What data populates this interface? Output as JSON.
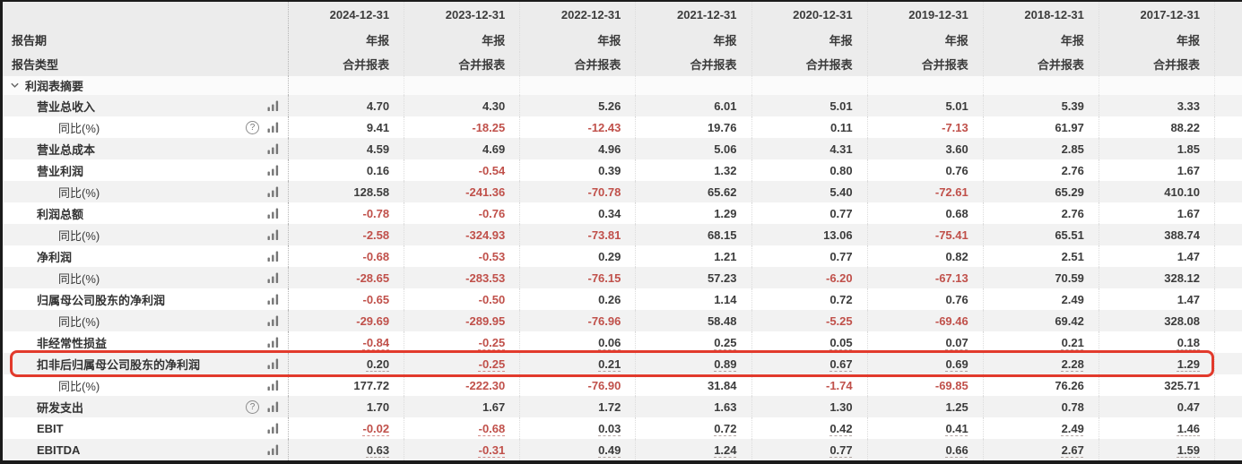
{
  "header": {
    "columns": [
      "2024-12-31",
      "2023-12-31",
      "2022-12-31",
      "2021-12-31",
      "2020-12-31",
      "2019-12-31",
      "2018-12-31",
      "2017-12-31"
    ],
    "report_period_label": "报告期",
    "report_period_value": "年报",
    "report_type_label": "报告类型",
    "report_type_value": "合并报表"
  },
  "section": {
    "label": "利润表摘要"
  },
  "rows": [
    {
      "label": "营业总收入",
      "indent": false,
      "help": false,
      "underline": false,
      "highlight": false,
      "values": [
        "4.70",
        "4.30",
        "5.26",
        "6.01",
        "5.01",
        "5.01",
        "5.39",
        "3.33"
      ]
    },
    {
      "label": "同比(%)",
      "indent": true,
      "help": true,
      "underline": false,
      "highlight": false,
      "values": [
        "9.41",
        "-18.25",
        "-12.43",
        "19.76",
        "0.11",
        "-7.13",
        "61.97",
        "88.22"
      ]
    },
    {
      "label": "营业总成本",
      "indent": false,
      "help": false,
      "underline": false,
      "highlight": false,
      "values": [
        "4.59",
        "4.69",
        "4.96",
        "5.06",
        "4.31",
        "3.60",
        "2.85",
        "1.85"
      ]
    },
    {
      "label": "营业利润",
      "indent": false,
      "help": false,
      "underline": false,
      "highlight": false,
      "values": [
        "0.16",
        "-0.54",
        "0.39",
        "1.32",
        "0.80",
        "0.76",
        "2.76",
        "1.67"
      ]
    },
    {
      "label": "同比(%)",
      "indent": true,
      "help": false,
      "underline": false,
      "highlight": false,
      "values": [
        "128.58",
        "-241.36",
        "-70.78",
        "65.62",
        "5.40",
        "-72.61",
        "65.29",
        "410.10"
      ]
    },
    {
      "label": "利润总额",
      "indent": false,
      "help": false,
      "underline": false,
      "highlight": false,
      "values": [
        "-0.78",
        "-0.76",
        "0.34",
        "1.29",
        "0.77",
        "0.68",
        "2.76",
        "1.67"
      ]
    },
    {
      "label": "同比(%)",
      "indent": true,
      "help": false,
      "underline": false,
      "highlight": false,
      "values": [
        "-2.58",
        "-324.93",
        "-73.81",
        "68.15",
        "13.06",
        "-75.41",
        "65.51",
        "388.74"
      ]
    },
    {
      "label": "净利润",
      "indent": false,
      "help": false,
      "underline": false,
      "highlight": false,
      "values": [
        "-0.68",
        "-0.53",
        "0.29",
        "1.21",
        "0.77",
        "0.82",
        "2.51",
        "1.47"
      ]
    },
    {
      "label": "同比(%)",
      "indent": true,
      "help": false,
      "underline": false,
      "highlight": false,
      "values": [
        "-28.65",
        "-283.53",
        "-76.15",
        "57.23",
        "-6.20",
        "-67.13",
        "70.59",
        "328.12"
      ]
    },
    {
      "label": "归属母公司股东的净利润",
      "indent": false,
      "help": false,
      "underline": false,
      "highlight": false,
      "values": [
        "-0.65",
        "-0.50",
        "0.26",
        "1.14",
        "0.72",
        "0.76",
        "2.49",
        "1.47"
      ]
    },
    {
      "label": "同比(%)",
      "indent": true,
      "help": false,
      "underline": false,
      "highlight": false,
      "values": [
        "-29.69",
        "-289.95",
        "-76.96",
        "58.48",
        "-5.25",
        "-69.46",
        "69.42",
        "328.08"
      ]
    },
    {
      "label": "非经常性损益",
      "indent": false,
      "help": false,
      "underline": true,
      "highlight": false,
      "values": [
        "-0.84",
        "-0.25",
        "0.06",
        "0.25",
        "0.05",
        "0.07",
        "0.21",
        "0.18"
      ]
    },
    {
      "label": "扣非后归属母公司股东的净利润",
      "indent": false,
      "help": false,
      "underline": true,
      "highlight": true,
      "values": [
        "0.20",
        "-0.25",
        "0.21",
        "0.89",
        "0.67",
        "0.69",
        "2.28",
        "1.29"
      ]
    },
    {
      "label": "同比(%)",
      "indent": true,
      "help": false,
      "underline": false,
      "highlight": false,
      "values": [
        "177.72",
        "-222.30",
        "-76.90",
        "31.84",
        "-1.74",
        "-69.85",
        "76.26",
        "325.71"
      ]
    },
    {
      "label": "研发支出",
      "indent": false,
      "help": true,
      "underline": false,
      "highlight": false,
      "values": [
        "1.70",
        "1.67",
        "1.72",
        "1.63",
        "1.30",
        "1.25",
        "0.78",
        "0.47"
      ]
    },
    {
      "label": "EBIT",
      "indent": false,
      "help": false,
      "underline": true,
      "highlight": false,
      "values": [
        "-0.02",
        "-0.68",
        "0.03",
        "0.72",
        "0.42",
        "0.41",
        "2.49",
        "1.46"
      ]
    },
    {
      "label": "EBITDA",
      "indent": false,
      "help": false,
      "underline": true,
      "highlight": false,
      "values": [
        "0.63",
        "-0.31",
        "0.49",
        "1.24",
        "0.77",
        "0.66",
        "2.67",
        "1.59"
      ]
    }
  ],
  "colors": {
    "negative": "#c0504a",
    "highlight_border": "#e23a2c",
    "header_background": "#ececec",
    "row_alt_background": "#f2f2f2"
  }
}
